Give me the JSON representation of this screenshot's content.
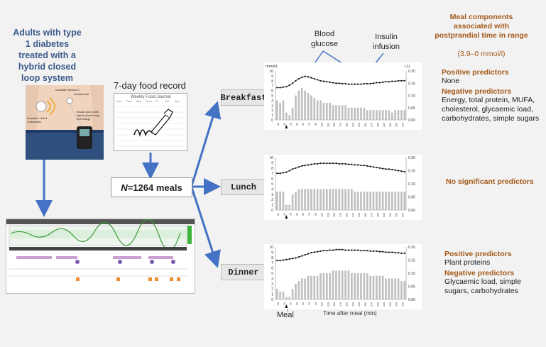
{
  "left": {
    "title": "Adults with type 1 diabetes treated with a hybrid closed loop system",
    "device_labels": [
      "Guardian Sensor 3",
      "Guardian Link 3 Transmitter",
      "Infusion site",
      "Insulin pump with hybrid closed loop technology"
    ]
  },
  "food": {
    "label": "7-day food record",
    "journal_title": "Weekly Food Journal",
    "days": [
      "Mon",
      "Tues",
      "Wed",
      "Thurs",
      "Fri",
      "Sat",
      "Sun"
    ]
  },
  "meals_box": {
    "prefix": "N",
    "text": "=1264 meals"
  },
  "meal_labels": {
    "breakfast": "Breakfast",
    "lunch": "Lunch",
    "dinner": "Dinner"
  },
  "callouts": {
    "blood_glucose": "Blood glucose",
    "insulin_infusion": "Insulin infusion",
    "meal": "Meal"
  },
  "axes": {
    "left_unit": "mmol/L",
    "right_unit": "I.U.",
    "left_ticks": [
      "10",
      "9",
      "8",
      "7",
      "6",
      "5",
      "4",
      "3",
      "2",
      "1",
      "0"
    ],
    "right_ticks": [
      "0.20",
      "0.15",
      "0.10",
      "0.05",
      "0.00"
    ],
    "x_label": "Time after meal (min)"
  },
  "right": {
    "title": "Meal components associated with postprandial time in range",
    "subtitle": "(3.9–0 mmol/l)",
    "breakfast": {
      "positive_heading": "Positive predictors",
      "positive": "None",
      "negative_heading": "Negative predictors",
      "negative": "Energy, total protein, MUFA, cholesterol, glycaemic load, carbohydrates, simple sugars"
    },
    "lunch": {
      "text": "No significant predictors"
    },
    "dinner": {
      "positive_heading": "Positive predictors",
      "positive": "Plant proteins",
      "negative_heading": "Negative predictors",
      "negative": "Glycaemic load, simple sugars, carbohydrates"
    }
  },
  "colors": {
    "arrow": "#4472c4",
    "accent": "#a45a1a",
    "title_blue": "#3b5b8a",
    "bars": "#bfbfbf"
  },
  "chart_data": [
    {
      "type": "bar",
      "name": "Breakfast",
      "x_start": -30,
      "x_step": 5,
      "x_end": 360,
      "glucose": [
        6.6,
        6.6,
        6.7,
        6.8,
        7.1,
        7.5,
        8.0,
        8.4,
        8.7,
        8.9,
        8.8,
        8.6,
        8.4,
        8.2,
        8.0,
        7.9,
        7.8,
        7.7,
        7.6,
        7.5,
        7.5,
        7.4,
        7.4,
        7.3,
        7.3,
        7.3,
        7.3,
        7.3,
        7.4,
        7.4,
        7.4,
        7.5,
        7.6,
        7.6,
        7.7,
        7.8,
        7.8,
        7.9,
        7.9,
        8.0,
        8.0,
        8.0
      ],
      "insulin": [
        0.08,
        0.07,
        0.08,
        0.03,
        0.02,
        0.05,
        0.1,
        0.12,
        0.13,
        0.12,
        0.11,
        0.1,
        0.09,
        0.08,
        0.08,
        0.07,
        0.07,
        0.07,
        0.06,
        0.06,
        0.06,
        0.06,
        0.06,
        0.05,
        0.05,
        0.05,
        0.05,
        0.05,
        0.05,
        0.04,
        0.04,
        0.04,
        0.04,
        0.04,
        0.04,
        0.04,
        0.04,
        0.03,
        0.04,
        0.04,
        0.04,
        0.04
      ],
      "left_range": [
        0,
        10
      ],
      "right_range": [
        0,
        0.2
      ]
    },
    {
      "type": "bar",
      "name": "Lunch",
      "x_start": -30,
      "x_step": 5,
      "x_end": 360,
      "glucose": [
        7.0,
        7.0,
        7.1,
        7.2,
        7.5,
        7.8,
        8.0,
        8.2,
        8.4,
        8.5,
        8.6,
        8.7,
        8.8,
        8.8,
        8.9,
        8.9,
        8.9,
        8.9,
        8.9,
        8.9,
        8.8,
        8.8,
        8.8,
        8.7,
        8.7,
        8.6,
        8.6,
        8.5,
        8.5,
        8.4,
        8.3,
        8.2,
        8.1,
        8.0,
        7.9,
        7.8,
        7.8,
        7.7,
        7.6,
        7.5,
        7.4,
        7.3
      ],
      "insulin": [
        0.07,
        0.07,
        0.07,
        0.02,
        0.02,
        0.06,
        0.07,
        0.08,
        0.08,
        0.08,
        0.08,
        0.08,
        0.08,
        0.08,
        0.08,
        0.08,
        0.08,
        0.08,
        0.08,
        0.08,
        0.08,
        0.08,
        0.08,
        0.08,
        0.08,
        0.07,
        0.07,
        0.07,
        0.07,
        0.07,
        0.07,
        0.07,
        0.07,
        0.07,
        0.07,
        0.07,
        0.07,
        0.07,
        0.07,
        0.07,
        0.07,
        0.07
      ],
      "left_range": [
        0,
        10
      ],
      "right_range": [
        0,
        0.2
      ]
    },
    {
      "type": "bar",
      "name": "Dinner",
      "x_start": -30,
      "x_step": 5,
      "x_end": 360,
      "glucose": [
        7.4,
        7.4,
        7.5,
        7.6,
        7.7,
        7.8,
        7.9,
        8.1,
        8.3,
        8.5,
        8.7,
        8.9,
        9.0,
        9.1,
        9.2,
        9.3,
        9.3,
        9.4,
        9.4,
        9.5,
        9.5,
        9.5,
        9.4,
        9.4,
        9.4,
        9.4,
        9.4,
        9.3,
        9.3,
        9.3,
        9.2,
        9.2,
        9.2,
        9.1,
        9.1,
        9.0,
        9.0,
        9.0,
        8.9,
        8.9,
        8.8,
        8.8
      ],
      "insulin": [
        0.04,
        0.03,
        0.03,
        0.01,
        0.01,
        0.04,
        0.06,
        0.07,
        0.08,
        0.08,
        0.09,
        0.09,
        0.09,
        0.09,
        0.1,
        0.1,
        0.1,
        0.1,
        0.11,
        0.11,
        0.11,
        0.11,
        0.11,
        0.11,
        0.1,
        0.1,
        0.1,
        0.1,
        0.1,
        0.1,
        0.09,
        0.09,
        0.09,
        0.09,
        0.09,
        0.08,
        0.08,
        0.08,
        0.08,
        0.08,
        0.07,
        0.07
      ],
      "left_range": [
        0,
        10
      ],
      "right_range": [
        0,
        0.2
      ]
    }
  ]
}
